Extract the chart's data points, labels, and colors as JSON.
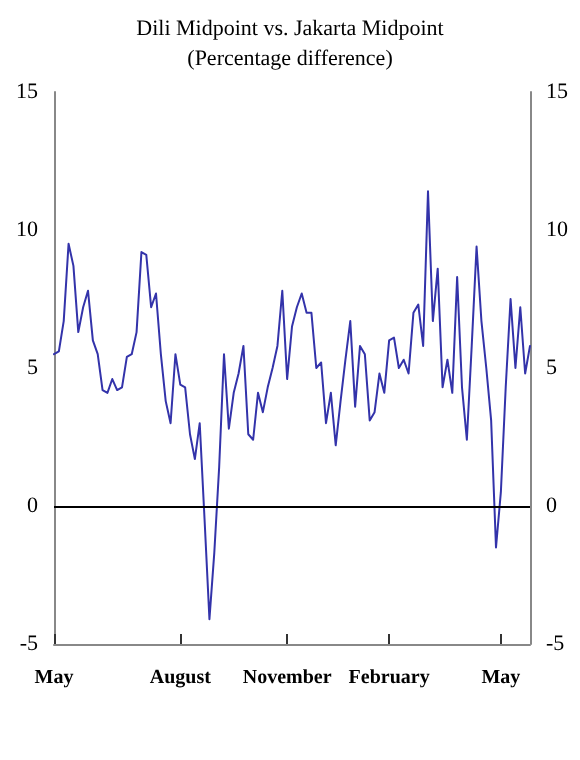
{
  "chart_data": {
    "type": "line",
    "title": "Dili Midpoint vs. Jakarta Midpoint",
    "subtitle": "(Percentage difference)",
    "categories": [
      "May",
      null,
      null,
      null,
      null,
      null,
      null,
      null,
      null,
      null,
      null,
      null,
      null,
      null,
      null,
      null,
      null,
      null,
      null,
      null,
      null,
      null,
      null,
      null,
      null,
      null,
      "August",
      null,
      null,
      null,
      null,
      null,
      null,
      null,
      null,
      null,
      null,
      null,
      null,
      null,
      null,
      null,
      null,
      null,
      null,
      null,
      null,
      null,
      "November",
      null,
      null,
      null,
      null,
      null,
      null,
      null,
      null,
      null,
      null,
      null,
      null,
      null,
      null,
      null,
      null,
      null,
      null,
      null,
      null,
      "February",
      null,
      null,
      null,
      null,
      null,
      null,
      null,
      null,
      null,
      null,
      null,
      null,
      null,
      null,
      null,
      null,
      null,
      null,
      null,
      null,
      null,
      null,
      "May",
      null,
      null,
      null,
      null,
      null,
      null
    ],
    "series": [
      {
        "color": "#3333aa",
        "values": [
          5.5,
          5.6,
          6.7,
          9.5,
          8.7,
          6.3,
          7.2,
          7.8,
          6.0,
          5.5,
          4.2,
          4.1,
          4.6,
          4.2,
          4.3,
          5.4,
          5.5,
          6.3,
          9.2,
          9.1,
          7.2,
          7.7,
          5.5,
          3.8,
          3.0,
          5.5,
          4.4,
          4.3,
          2.6,
          1.7,
          3.0,
          -0.5,
          -4.1,
          -1.7,
          1.4,
          5.5,
          2.8,
          4.1,
          4.8,
          5.8,
          2.6,
          2.4,
          4.1,
          3.4,
          4.3,
          5.0,
          5.8,
          7.8,
          4.6,
          6.5,
          7.2,
          7.7,
          7.0,
          7.0,
          5.0,
          5.2,
          3.0,
          4.1,
          2.2,
          3.8,
          5.3,
          6.7,
          3.6,
          5.8,
          5.5,
          3.1,
          3.4,
          4.8,
          4.1,
          6.0,
          6.1,
          5.0,
          5.3,
          4.8,
          7.0,
          7.3,
          5.8,
          11.4,
          6.7,
          8.6,
          4.3,
          5.3,
          4.1,
          8.3,
          4.3,
          2.4,
          5.8,
          9.4,
          6.7,
          5.0,
          3.1,
          -1.5,
          0.5,
          4.3,
          7.5,
          5.0,
          7.2,
          4.8,
          5.8
        ]
      }
    ],
    "ylim": [
      -5,
      15
    ],
    "yticks": [
      -5,
      0,
      5,
      10,
      15
    ],
    "y2lim": [
      -5,
      15
    ],
    "y2ticks": [
      -5,
      0,
      5,
      10,
      15
    ],
    "ref_lines": [
      {
        "axis": "y",
        "value": 0,
        "color": "#000000"
      }
    ],
    "grid": false,
    "marker": "none",
    "line_style": "solid"
  }
}
